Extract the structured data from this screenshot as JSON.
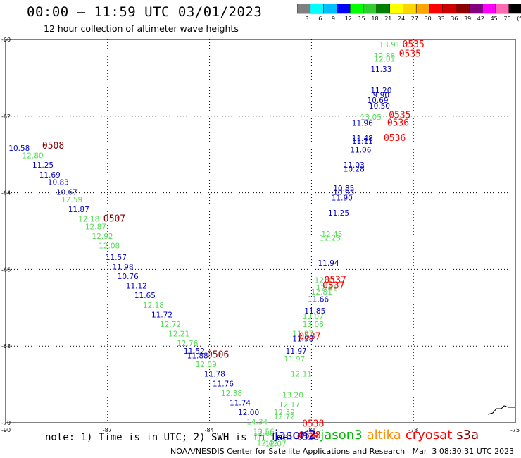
{
  "title": "00:00 – 11:59 UTC 03/01/2023",
  "subtitle": "12 hour collection of altimeter wave heights",
  "colorbar": {
    "colors": [
      "#808080",
      "#00ffff",
      "#00bfff",
      "#0000ff",
      "#00ff00",
      "#32cd32",
      "#008000",
      "#ffff00",
      "#ffd700",
      "#ffa500",
      "#ff0000",
      "#cc0000",
      "#8b0000",
      "#800080",
      "#ff00ff",
      "#ff69b4",
      "#000000"
    ],
    "labels": [
      "3",
      "6",
      "9",
      "12",
      "15",
      "18",
      "21",
      "24",
      "27",
      "30",
      "33",
      "36",
      "39",
      "42",
      "45",
      "70",
      "(ft)"
    ]
  },
  "note": "note: 1) Time is in UTC; 2) SWH is in feet",
  "legend": [
    {
      "label": "jason2",
      "color": "#0000cc"
    },
    {
      "label": "jason3",
      "color": "#00bb00"
    },
    {
      "label": "altika",
      "color": "#ff8c00"
    },
    {
      "label": "cryosat",
      "color": "#ff0000"
    },
    {
      "label": "s3a",
      "color": "#880000"
    }
  ],
  "footer": "NOAA/NESDIS Center for Satellite Applications and Research   Mar  3 08:30:31 UTC 2023",
  "chart_data": {
    "type": "scatter",
    "xlim": [
      -90,
      -75
    ],
    "ylim": [
      -70,
      -60
    ],
    "xticks": [
      -90,
      -87,
      -84,
      -81,
      -78,
      -75
    ],
    "xtick_labels": [
      "-90",
      "-87",
      "-84",
      "-81",
      "-78",
      "-75"
    ],
    "yticks": [
      -60,
      -62,
      -64,
      -66,
      -68,
      -70
    ],
    "ytick_labels": [
      "-60",
      "-62",
      "-64",
      "-66",
      "-68",
      "-70"
    ],
    "grid": true,
    "colors": {
      "jason2": "#0000cc",
      "jason3": "#55dd55",
      "cryosat": "#ff0000",
      "s3a": "#880000"
    },
    "points": [
      {
        "x": -89.6,
        "y": -62.9,
        "label": "10.58",
        "sat": "jason2"
      },
      {
        "x": -89.2,
        "y": -63.1,
        "label": "12.80",
        "sat": "jason3"
      },
      {
        "x": -88.9,
        "y": -63.35,
        "label": "11.25",
        "sat": "jason2"
      },
      {
        "x": -88.7,
        "y": -63.6,
        "label": "11.69",
        "sat": "jason2"
      },
      {
        "x": -88.45,
        "y": -63.8,
        "label": "10.83",
        "sat": "jason2"
      },
      {
        "x": -88.2,
        "y": -64.05,
        "label": "10.67",
        "sat": "jason2"
      },
      {
        "x": -88.05,
        "y": -64.25,
        "label": "12.59",
        "sat": "jason3"
      },
      {
        "x": -87.85,
        "y": -64.5,
        "label": "11.87",
        "sat": "jason2"
      },
      {
        "x": -87.55,
        "y": -64.75,
        "label": "12.18",
        "sat": "jason3"
      },
      {
        "x": -87.35,
        "y": -64.95,
        "label": "12.87",
        "sat": "jason3"
      },
      {
        "x": -87.15,
        "y": -65.2,
        "label": "12.92",
        "sat": "jason3"
      },
      {
        "x": -86.95,
        "y": -65.45,
        "label": "12.08",
        "sat": "jason3"
      },
      {
        "x": -86.75,
        "y": -65.75,
        "label": "11.57",
        "sat": "jason2"
      },
      {
        "x": -86.55,
        "y": -66.0,
        "label": "11.98",
        "sat": "jason2"
      },
      {
        "x": -86.4,
        "y": -66.25,
        "label": "10.76",
        "sat": "jason2"
      },
      {
        "x": -86.15,
        "y": -66.5,
        "label": "11.12",
        "sat": "jason2"
      },
      {
        "x": -85.9,
        "y": -66.75,
        "label": "11.65",
        "sat": "jason2"
      },
      {
        "x": -85.65,
        "y": -67.0,
        "label": "12.18",
        "sat": "jason3"
      },
      {
        "x": -85.4,
        "y": -67.25,
        "label": "11.72",
        "sat": "jason2"
      },
      {
        "x": -85.15,
        "y": -67.5,
        "label": "12.72",
        "sat": "jason3"
      },
      {
        "x": -84.9,
        "y": -67.75,
        "label": "12.21",
        "sat": "jason3"
      },
      {
        "x": -84.65,
        "y": -68.0,
        "label": "12.76",
        "sat": "jason3"
      },
      {
        "x": -84.45,
        "y": -68.2,
        "label": "11.52",
        "sat": "jason2"
      },
      {
        "x": -84.35,
        "y": -68.32,
        "label": "11.88",
        "sat": "jason2"
      },
      {
        "x": -84.1,
        "y": -68.55,
        "label": "12.09",
        "sat": "jason3"
      },
      {
        "x": -83.85,
        "y": -68.8,
        "label": "11.78",
        "sat": "jason2"
      },
      {
        "x": -83.6,
        "y": -69.05,
        "label": "11.76",
        "sat": "jason2"
      },
      {
        "x": -83.35,
        "y": -69.3,
        "label": "12.38",
        "sat": "jason3"
      },
      {
        "x": -83.1,
        "y": -69.55,
        "label": "11.74",
        "sat": "jason2"
      },
      {
        "x": -82.85,
        "y": -69.8,
        "label": "12.00",
        "sat": "jason2"
      },
      {
        "x": -82.6,
        "y": -70.05,
        "label": "14.34",
        "sat": "jason3"
      },
      {
        "x": -82.4,
        "y": -70.3,
        "label": "12.56",
        "sat": "jason3"
      },
      {
        "x": -82.4,
        "y": -70.35,
        "label": "12.60",
        "sat": "jason3"
      },
      {
        "x": -82.3,
        "y": -70.6,
        "label": "12.42",
        "sat": "jason3"
      },
      {
        "x": -82.05,
        "y": -70.62,
        "label": "12.07",
        "sat": "jason3"
      },
      {
        "x": -81.55,
        "y": -69.35,
        "label": "13.20",
        "sat": "jason3"
      },
      {
        "x": -81.65,
        "y": -69.6,
        "label": "12.17",
        "sat": "jason3"
      },
      {
        "x": -81.8,
        "y": -69.8,
        "label": "12.39",
        "sat": "jason3"
      },
      {
        "x": -81.8,
        "y": -69.9,
        "label": "12.72",
        "sat": "jason3"
      },
      {
        "x": -81.3,
        "y": -68.8,
        "label": "12.11",
        "sat": "jason3"
      },
      {
        "x": -81.25,
        "y": -67.75,
        "label": "11.97",
        "sat": "jason3"
      },
      {
        "x": -81.25,
        "y": -67.88,
        "label": "11.98",
        "sat": "jason2"
      },
      {
        "x": -81.45,
        "y": -68.2,
        "label": "11.97",
        "sat": "jason2"
      },
      {
        "x": -81.5,
        "y": -68.4,
        "label": "11.97",
        "sat": "jason3"
      },
      {
        "x": -80.9,
        "y": -67.15,
        "label": "11.85",
        "sat": "jason2"
      },
      {
        "x": -80.95,
        "y": -67.3,
        "label": "13.07",
        "sat": "jason3"
      },
      {
        "x": -80.95,
        "y": -67.5,
        "label": "13.08",
        "sat": "jason3"
      },
      {
        "x": -80.8,
        "y": -66.85,
        "label": "11.66",
        "sat": "jason2"
      },
      {
        "x": -80.6,
        "y": -66.35,
        "label": "12.81",
        "sat": "jason3"
      },
      {
        "x": -80.55,
        "y": -66.55,
        "label": "12.41",
        "sat": "jason3"
      },
      {
        "x": -80.7,
        "y": -66.65,
        "label": "12.81",
        "sat": "jason3"
      },
      {
        "x": -80.5,
        "y": -65.9,
        "label": "11.94",
        "sat": "jason2"
      },
      {
        "x": -80.4,
        "y": -65.15,
        "label": "12.45",
        "sat": "jason3"
      },
      {
        "x": -80.45,
        "y": -65.25,
        "label": "12.28",
        "sat": "jason3"
      },
      {
        "x": -80.2,
        "y": -64.6,
        "label": "11.25",
        "sat": "jason2"
      },
      {
        "x": -80.1,
        "y": -64.2,
        "label": "11.90",
        "sat": "jason2"
      },
      {
        "x": -80.05,
        "y": -63.95,
        "label": "10.85",
        "sat": "jason2"
      },
      {
        "x": -80.05,
        "y": -64.05,
        "label": "10.93",
        "sat": "jason2"
      },
      {
        "x": -79.75,
        "y": -63.35,
        "label": "11.03",
        "sat": "jason2"
      },
      {
        "x": -79.75,
        "y": -63.45,
        "label": "10.28",
        "sat": "jason2"
      },
      {
        "x": -79.55,
        "y": -62.95,
        "label": "11.06",
        "sat": "jason2"
      },
      {
        "x": -79.5,
        "y": -62.65,
        "label": "11.48",
        "sat": "jason2"
      },
      {
        "x": -79.5,
        "y": -62.72,
        "label": "11.11",
        "sat": "jason2"
      },
      {
        "x": -79.5,
        "y": -62.25,
        "label": "11.96",
        "sat": "jason2"
      },
      {
        "x": -79.25,
        "y": -62.1,
        "label": "13.05",
        "sat": "jason3"
      },
      {
        "x": -79.05,
        "y": -61.65,
        "label": "10.69",
        "sat": "jason2"
      },
      {
        "x": -79.0,
        "y": -61.8,
        "label": "10.50",
        "sat": "jason2"
      },
      {
        "x": -78.95,
        "y": -61.4,
        "label": "11.20",
        "sat": "jason2"
      },
      {
        "x": -78.95,
        "y": -61.52,
        "label": "9.90",
        "sat": "jason2"
      },
      {
        "x": -78.95,
        "y": -60.85,
        "label": "11.33",
        "sat": "jason2"
      },
      {
        "x": -78.85,
        "y": -60.5,
        "label": "12.88",
        "sat": "jason3"
      },
      {
        "x": -78.85,
        "y": -60.58,
        "label": "12.01",
        "sat": "jason3"
      },
      {
        "x": -78.7,
        "y": -60.2,
        "label": "13.91",
        "sat": "jason3"
      }
    ],
    "passes": [
      {
        "x": -88.6,
        "y": -62.85,
        "label": "0508",
        "sat": "s3a"
      },
      {
        "x": -86.8,
        "y": -64.75,
        "label": "0507",
        "sat": "s3a"
      },
      {
        "x": -83.75,
        "y": -68.3,
        "label": "0506",
        "sat": "s3a"
      },
      {
        "x": -81.05,
        "y": -67.82,
        "label": "0537",
        "sat": "cryosat"
      },
      {
        "x": -80.3,
        "y": -66.35,
        "label": "0537",
        "sat": "cryosat"
      },
      {
        "x": -80.35,
        "y": -66.5,
        "label": "0537",
        "sat": "cryosat"
      },
      {
        "x": -80.95,
        "y": -70.1,
        "label": "0538",
        "sat": "cryosat"
      },
      {
        "x": -81.05,
        "y": -70.4,
        "label": "0538",
        "sat": "cryosat"
      },
      {
        "x": -81.1,
        "y": -70.45,
        "label": "0538",
        "sat": "cryosat"
      },
      {
        "x": -78.55,
        "y": -62.65,
        "label": "0536",
        "sat": "cryosat"
      },
      {
        "x": -78.4,
        "y": -62.05,
        "label": "0535",
        "sat": "cryosat"
      },
      {
        "x": -78.45,
        "y": -62.25,
        "label": "0536",
        "sat": "cryosat"
      },
      {
        "x": -78.0,
        "y": -60.2,
        "label": "0535",
        "sat": "cryosat"
      },
      {
        "x": -78.1,
        "y": -60.45,
        "label": "0535",
        "sat": "cryosat"
      }
    ]
  }
}
